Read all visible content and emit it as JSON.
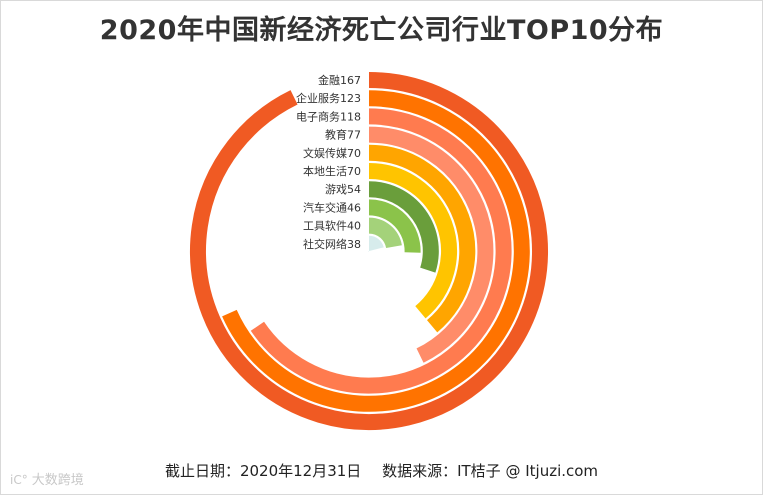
{
  "title": "2020年中国新经济死亡公司行业TOP10分布",
  "footer": {
    "date": "截止日期：2020年12月31日",
    "source": "数据来源：IT桔子 @ Itjuzi.com"
  },
  "watermark": {
    "icon": "ic-logo-icon",
    "text": "大数跨境"
  },
  "chart_data": {
    "type": "radial-bar",
    "title": "2020年中国新经济死亡公司行业TOP10分布",
    "categories": [
      "金融",
      "企业服务",
      "电子商务",
      "教育",
      "文娱传媒",
      "本地生活",
      "游戏",
      "汽车交通",
      "工具软件",
      "社交网络"
    ],
    "values": [
      167,
      123,
      118,
      77,
      70,
      70,
      54,
      46,
      40,
      38
    ],
    "labels": [
      "金融167",
      "企业服务123",
      "电子商务118",
      "教育77",
      "文娱传媒70",
      "本地生活70",
      "游戏54",
      "汽车交通46",
      "工具软件40",
      "社交网络38"
    ],
    "colors": [
      "#f05a23",
      "#ff7300",
      "#ff7b4f",
      "#ff8c69",
      "#ffa500",
      "#ffc400",
      "#6a9e3b",
      "#8bc34a",
      "#a4d27a",
      "#d7ecec"
    ]
  }
}
